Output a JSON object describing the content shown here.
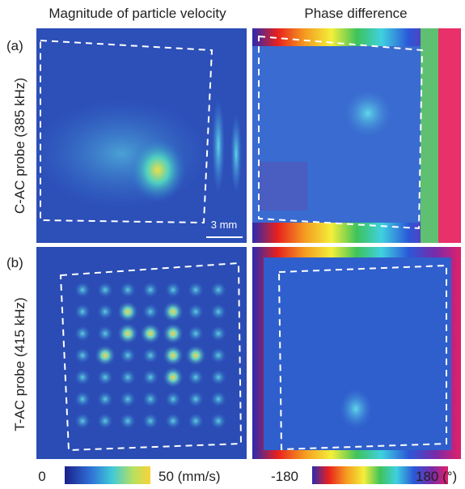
{
  "columns": [
    "Magnitude of particle velocity",
    "Phase difference"
  ],
  "rows": [
    {
      "label": "(a)",
      "probe": "C-AC probe (385 kHz)"
    },
    {
      "label": "(b)",
      "probe": "T-AC probe (415 kHz)"
    }
  ],
  "scale_bar": "3 mm",
  "colorbars": [
    {
      "min": "0",
      "max": "50 (mm/s)"
    },
    {
      "min": "-180",
      "max": "180 (°)"
    }
  ]
}
